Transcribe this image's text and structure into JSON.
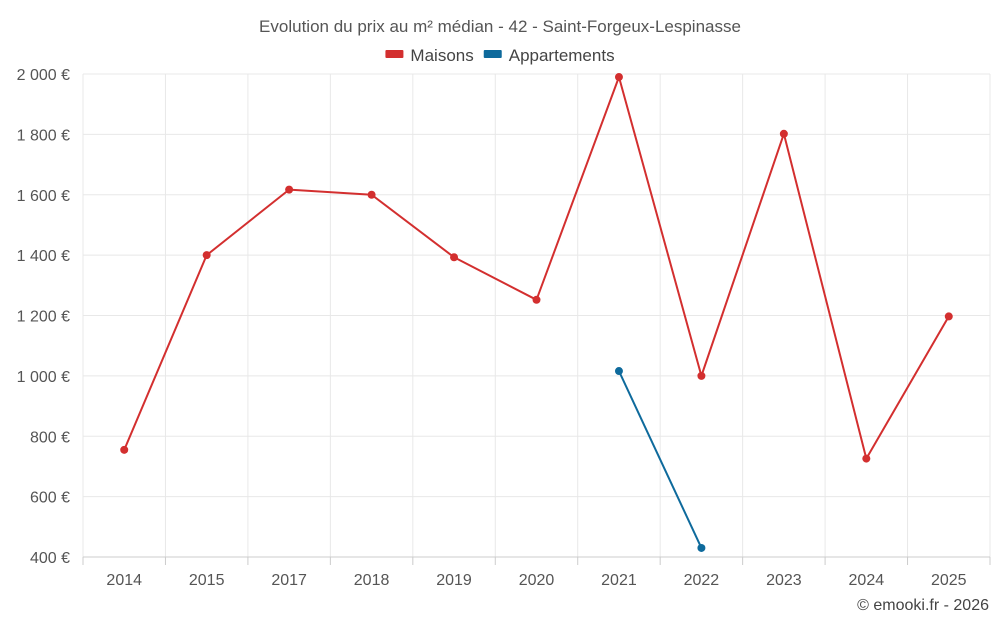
{
  "chart_data": {
    "type": "line",
    "title": "Evolution du prix au m² médian - 42 - Saint-Forgeux-Lespinasse",
    "categories": [
      "2014",
      "2015",
      "2017",
      "2018",
      "2019",
      "2020",
      "2021",
      "2022",
      "2023",
      "2024",
      "2025"
    ],
    "series": [
      {
        "name": "Maisons",
        "color": "#d32f2f",
        "values": [
          755,
          1400,
          1617,
          1600,
          1393,
          1252,
          1990,
          1000,
          1802,
          726,
          1197
        ]
      },
      {
        "name": "Appartements",
        "color": "#0e6a9c",
        "values": [
          null,
          null,
          null,
          null,
          null,
          null,
          1016,
          430,
          null,
          null,
          null
        ]
      }
    ],
    "yticks": [
      400,
      600,
      800,
      1000,
      1200,
      1400,
      1600,
      1800,
      2000
    ],
    "ytick_labels": [
      "400 €",
      "600 €",
      "800 €",
      "1 000 €",
      "1 200 €",
      "1 400 €",
      "1 600 €",
      "1 800 €",
      "2 000 €"
    ],
    "ylim": [
      400,
      2000
    ],
    "xlabel": "",
    "ylabel": "",
    "grid": true,
    "legend": "top-center"
  },
  "credit": "© emooki.fr - 2026"
}
